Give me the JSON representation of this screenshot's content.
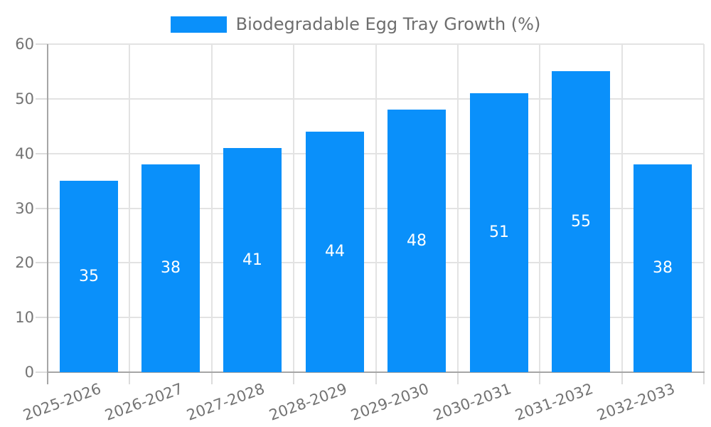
{
  "colors": {
    "bar": "#0a90fa",
    "grid": "#e3e3e3",
    "tick": "#dcdcdc",
    "axis": "#a6a6a6",
    "label_text": "#737373",
    "title_text": "#6e6e6e",
    "value_label_text": "#ffffff",
    "background": "#ffffff"
  },
  "chart_data": {
    "type": "bar",
    "title": "Biodegradable Egg Tray Growth (%)",
    "legend": [
      "Biodegradable Egg Tray Growth (%)"
    ],
    "legend_position": "top-center",
    "categories": [
      "2025-2026",
      "2026-2027",
      "2027-2028",
      "2028-2029",
      "2029-2030",
      "2030-2031",
      "2031-2032",
      "2032-2033"
    ],
    "values": [
      35,
      38,
      41,
      44,
      48,
      51,
      55,
      38
    ],
    "xlabel": "",
    "ylabel": "",
    "ylim": [
      0,
      60
    ],
    "ytick_step": 10,
    "yticks": [
      0,
      10,
      20,
      30,
      40,
      50,
      60
    ],
    "grid": true,
    "x_label_rotation_deg": -20,
    "value_labels": "centered-inside-bars"
  }
}
